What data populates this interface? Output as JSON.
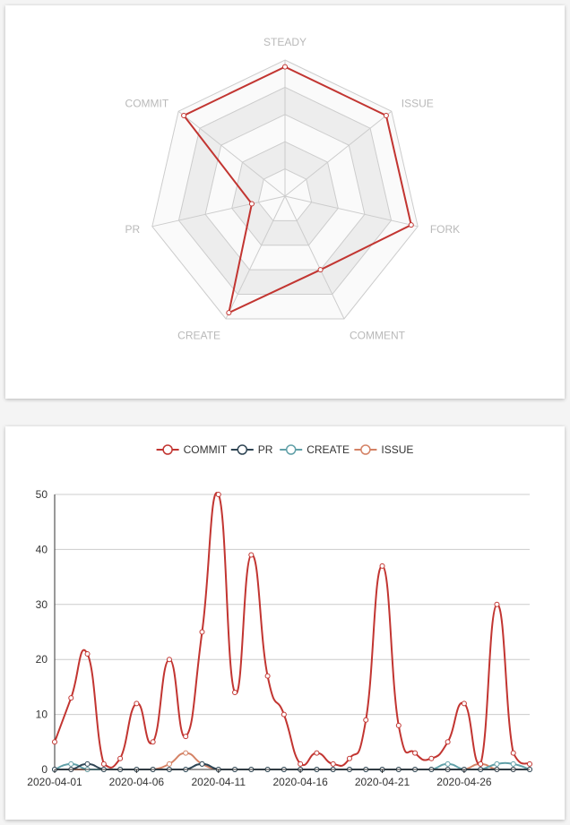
{
  "colors": {
    "commit": "#c23531",
    "pr": "#2f4554",
    "create": "#61a0a8",
    "issue": "#d48265"
  },
  "chart_data": [
    {
      "type": "radar",
      "indicators": [
        "STEADY",
        "ISSUE",
        "FORK",
        "COMMENT",
        "CREATE",
        "PR",
        "COMMIT"
      ],
      "max": 1,
      "series": [
        {
          "values": [
            0.95,
            0.95,
            0.95,
            0.6,
            0.95,
            0.25,
            0.95
          ]
        }
      ],
      "split_number": 5
    },
    {
      "type": "line",
      "smooth": true,
      "legend": [
        "COMMIT",
        "PR",
        "CREATE",
        "ISSUE"
      ],
      "x": [
        "2020-04-01",
        "2020-04-02",
        "2020-04-03",
        "2020-04-04",
        "2020-04-05",
        "2020-04-06",
        "2020-04-07",
        "2020-04-08",
        "2020-04-09",
        "2020-04-10",
        "2020-04-11",
        "2020-04-12",
        "2020-04-13",
        "2020-04-14",
        "2020-04-15",
        "2020-04-16",
        "2020-04-17",
        "2020-04-18",
        "2020-04-19",
        "2020-04-20",
        "2020-04-21",
        "2020-04-22",
        "2020-04-23",
        "2020-04-24",
        "2020-04-25",
        "2020-04-26",
        "2020-04-27",
        "2020-04-28",
        "2020-04-29",
        "2020-04-30"
      ],
      "x_tick_labels": [
        "2020-04-01",
        "2020-04-06",
        "2020-04-11",
        "2020-04-16",
        "2020-04-21",
        "2020-04-26"
      ],
      "y_ticks": [
        0,
        10,
        20,
        30,
        40,
        50
      ],
      "ylim": [
        0,
        50
      ],
      "series": [
        {
          "name": "COMMIT",
          "values": [
            5,
            13,
            21,
            1,
            2,
            12,
            5,
            20,
            6,
            25,
            50,
            14,
            39,
            17,
            10,
            1,
            3,
            1,
            2,
            9,
            37,
            8,
            3,
            2,
            5,
            12,
            1,
            30,
            3,
            1
          ]
        },
        {
          "name": "PR",
          "values": [
            0,
            0,
            1,
            0,
            0,
            0,
            0,
            0,
            0,
            1,
            0,
            0,
            0,
            0,
            0,
            0,
            0,
            0,
            0,
            0,
            0,
            0,
            0,
            0,
            0,
            0,
            0,
            0,
            0,
            0
          ]
        },
        {
          "name": "CREATE",
          "values": [
            0,
            1,
            0,
            0,
            0,
            0,
            0,
            0,
            0,
            1,
            0,
            0,
            0,
            0,
            0,
            0,
            0,
            0,
            0,
            0,
            0,
            0,
            0,
            0,
            1,
            0,
            0,
            1,
            1,
            0
          ]
        },
        {
          "name": "ISSUE",
          "values": [
            0,
            0,
            0,
            0,
            0,
            0,
            0,
            1,
            3,
            1,
            0,
            0,
            0,
            0,
            0,
            0,
            0,
            0,
            0,
            0,
            0,
            0,
            0,
            0,
            0,
            0,
            1,
            0,
            0,
            0
          ]
        }
      ]
    }
  ]
}
